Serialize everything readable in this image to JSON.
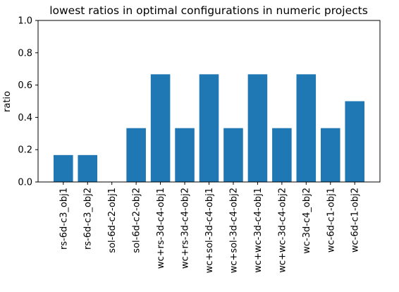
{
  "chart_data": {
    "type": "bar",
    "title": "lowest ratios in optimal configurations in numeric projects",
    "xlabel": "",
    "ylabel": "ratio",
    "ylim": [
      0,
      1.0
    ],
    "yticks": [
      "0.0",
      "0.2",
      "0.4",
      "0.6",
      "0.8",
      "1.0"
    ],
    "ytick_values": [
      0.0,
      0.2,
      0.4,
      0.6,
      0.8,
      1.0
    ],
    "categories": [
      "rs-6d-c3_obj1",
      "rs-6d-c3_obj2",
      "sol-6d-c2-obj1",
      "sol-6d-c2-obj2",
      "wc+rs-3d-c4-obj1",
      "wc+rs-3d-c4-obj2",
      "wc+sol-3d-c4-obj1",
      "wc+sol-3d-c4-obj2",
      "wc+wc-3d-c4-obj1",
      "wc+wc-3d-c4-obj2",
      "wc-3d-c4_obj2",
      "wc-6d-c1-obj1",
      "wc-6d-c1-obj2"
    ],
    "values": [
      0.1667,
      0.1667,
      0.0,
      0.3333,
      0.6667,
      0.3333,
      0.6667,
      0.3333,
      0.6667,
      0.3333,
      0.6667,
      0.3333,
      0.5
    ],
    "bar_color": "#1f77b4",
    "grid": false,
    "legend": "none"
  }
}
